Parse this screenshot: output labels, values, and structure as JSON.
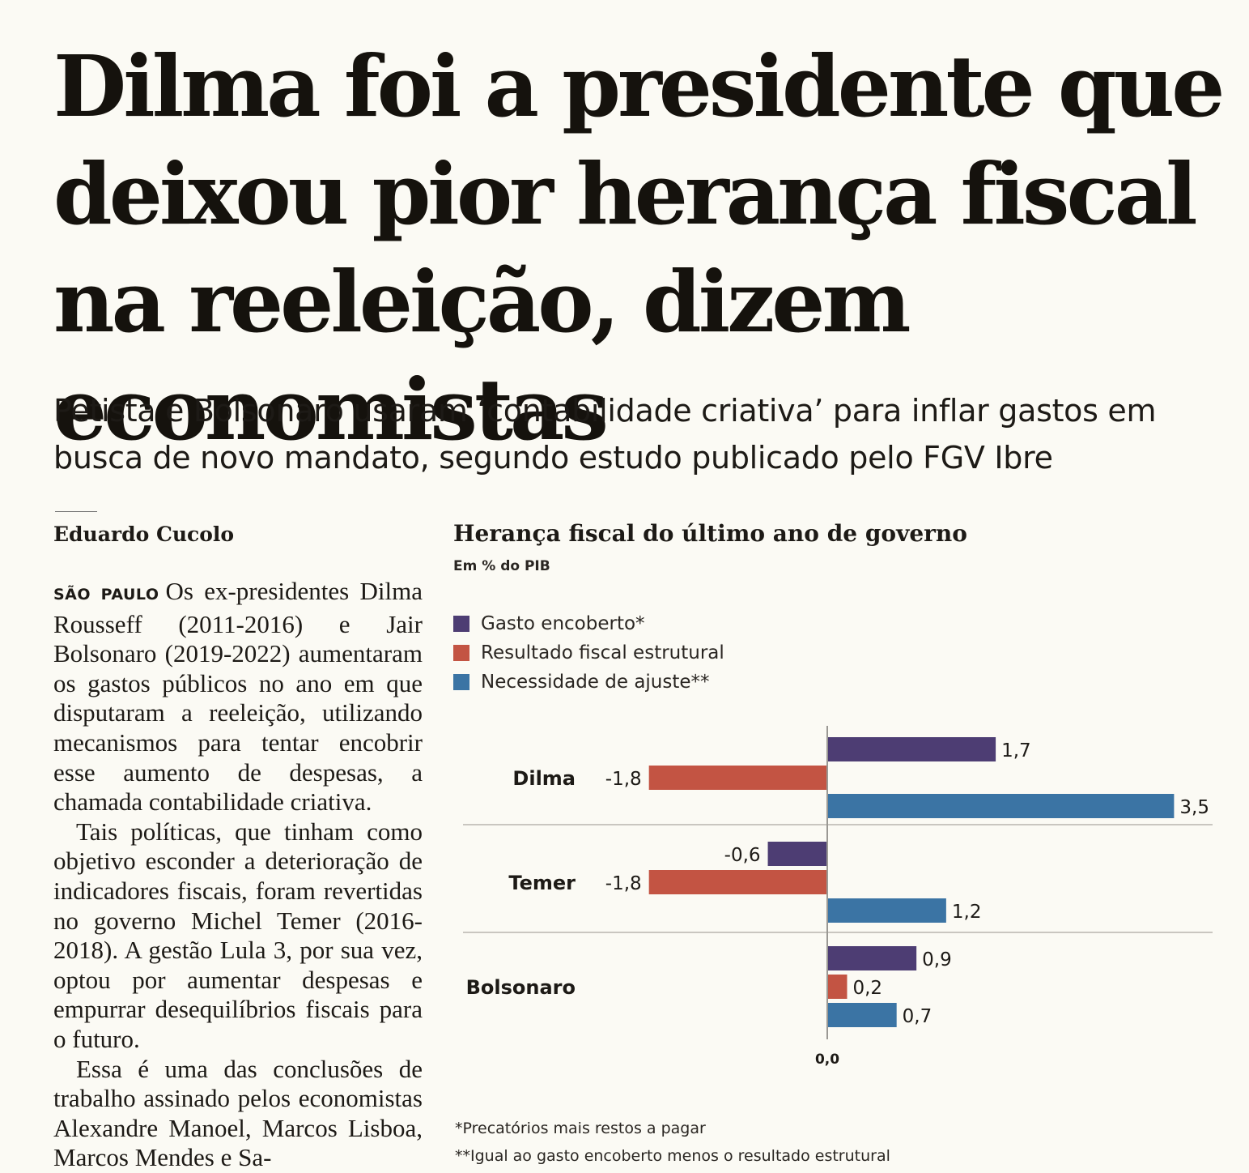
{
  "article": {
    "headline": "Dilma foi a presidente que deixou pior herança fiscal na reeleição, dizem economistas",
    "subheadline": "Petista e Bolsonaro usaram ‘contabilidade criativa’ para inflar gastos em busca de novo mandato, segundo estudo publicado pelo FGV Ibre",
    "byline": "Eduardo Cucolo",
    "dateline": "SÃO PAULO",
    "paragraphs": [
      "Os ex-presidentes Dilma Rousseff (2011-2016) e Jair Bolsonaro (2019-2022) aumentaram os gastos públicos no ano em que disputaram a reeleição, utilizando mecanismos para tentar encobrir esse aumento de despesas, a chamada contabilidade criativa.",
      "Tais políticas, que tinham como objetivo esconder a deterioração de indicadores fiscais, foram revertidas no governo Michel Temer (2016-2018). A gestão Lula 3, por sua vez, optou por aumentar despesas e empurrar desequilíbrios fiscais para o futuro.",
      "Essa é uma das conclusões de trabalho assinado pelos economistas Alexandre Manoel, Marcos Lisboa, Marcos Mendes e Sa-"
    ]
  },
  "chart_data": {
    "type": "bar",
    "orientation": "horizontal",
    "title": "Herança fiscal do último ano de governo",
    "unit_label": "Em % do PIB",
    "categories": [
      "Dilma",
      "Temer",
      "Bolsonaro"
    ],
    "series": [
      {
        "name": "Gasto encoberto*",
        "color": "#4d3d73",
        "values": [
          1.7,
          -0.6,
          0.9
        ],
        "labels": [
          "1,7",
          "-0,6",
          "0,9"
        ]
      },
      {
        "name": "Resultado fiscal estrutural",
        "color": "#c35443",
        "values": [
          -1.8,
          -1.8,
          0.2
        ],
        "labels": [
          "-1,8",
          "-1,8",
          "0,2"
        ]
      },
      {
        "name": "Necessidade de ajuste**",
        "color": "#3b74a4",
        "values": [
          3.5,
          1.2,
          0.7
        ],
        "labels": [
          "3,5",
          "1,2",
          "0,7"
        ]
      }
    ],
    "zero_label": "0,0",
    "xlim": [
      -1.8,
      3.5
    ],
    "grid": false,
    "legend_position": "top-left",
    "footnotes": [
      "*Precatórios mais restos a pagar",
      "**Igual ao gasto encoberto menos o resultado estrutural"
    ]
  }
}
